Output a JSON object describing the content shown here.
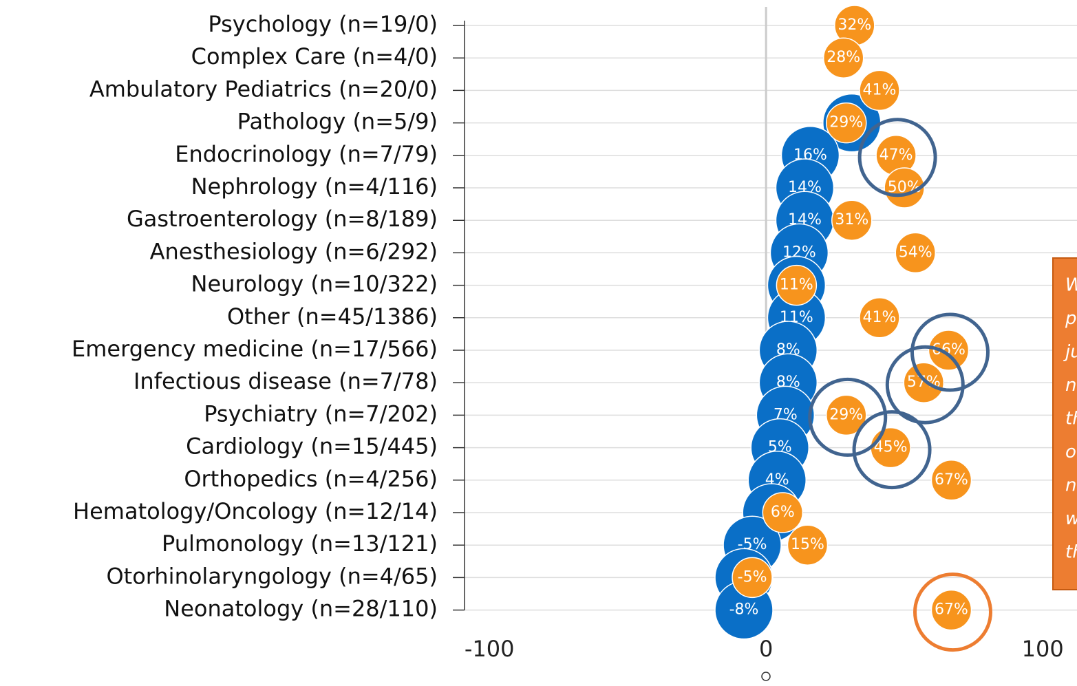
{
  "chart_data": {
    "type": "dot",
    "categories": [
      "Psychology (n=19/0)",
      "Complex Care (n=4/0)",
      "Ambulatory Pediatrics (n=20/0)",
      "Pathology (n=5/9)",
      "Endocrinology (n=7/79)",
      "Nephrology (n=4/116)",
      "Gastroenterology (n=8/189)",
      "Anesthesiology (n=6/292)",
      "Neurology (n=10/322)",
      "Other (n=45/1386)",
      "Emergency medicine (n=17/566)",
      "Infectious disease (n=7/78)",
      "Psychiatry (n=7/202)",
      "Cardiology (n=15/445)",
      "Orthopedics (n=4/256)",
      "Hematology/Oncology (n=12/14)",
      "Pulmonology (n=13/121)",
      "Otorhinolaryngology (n=4/65)",
      "Neonatology (n=28/110)"
    ],
    "series": [
      {
        "color": "#0a6fc7",
        "values": [
          null,
          null,
          null,
          31,
          16,
          14,
          14,
          12,
          11,
          11,
          8,
          8,
          7,
          5,
          4,
          2,
          -5,
          -8,
          -8
        ],
        "value_labels": [
          null,
          null,
          null,
          null,
          "16%",
          "14%",
          "14%",
          "12%",
          null,
          "11%",
          "8%",
          "8%",
          "7%",
          "5%",
          "4%",
          null,
          "-5%",
          null,
          "-8%"
        ]
      },
      {
        "color": "#f7941d",
        "values": [
          32,
          28,
          41,
          29,
          47,
          50,
          31,
          54,
          11,
          41,
          66,
          57,
          29,
          45,
          67,
          6,
          15,
          -5,
          67
        ],
        "value_labels": [
          "32%",
          "28%",
          "41%",
          "29%",
          "47%",
          "50%",
          "31%",
          "54%",
          "11%",
          "41%",
          "66%",
          "57%",
          "29%",
          "45%",
          "67%",
          "6%",
          "15%",
          "-5%",
          "67%"
        ]
      }
    ],
    "xlim": [
      -109,
      112.4
    ],
    "xticks": [
      -100,
      0,
      100
    ],
    "highlighted": [
      4,
      10,
      11,
      12,
      13
    ],
    "highlight_color": "#41648f",
    "emphasized": [
      18
    ],
    "emphasis_color": "#ed7d31",
    "annotation_lines": [
      "W",
      "p",
      "ju",
      "n",
      "th",
      "o",
      "n",
      "w",
      "th"
    ]
  }
}
